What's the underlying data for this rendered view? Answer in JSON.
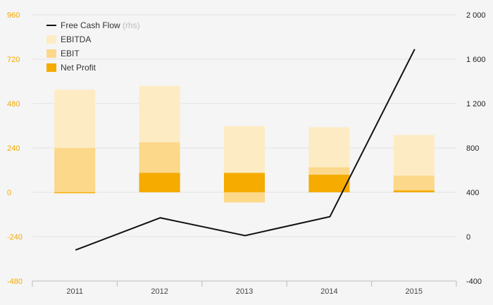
{
  "chart_data": {
    "type": "bar",
    "categories": [
      "2011",
      "2012",
      "2013",
      "2014",
      "2015"
    ],
    "series": [
      {
        "name": "EBITDA",
        "kind": "bar",
        "axis": "left",
        "values": [
          555,
          575,
          358,
          352,
          310
        ],
        "color": "#fdebc3"
      },
      {
        "name": "EBIT",
        "kind": "bar",
        "axis": "left",
        "values": [
          240,
          270,
          -55,
          135,
          90
        ],
        "color": "#fcd88a"
      },
      {
        "name": "Net Profit",
        "kind": "bar",
        "axis": "left",
        "values": [
          -5,
          105,
          105,
          95,
          10
        ],
        "color": "#f5ab00"
      },
      {
        "name": "Free Cash Flow",
        "note": "(rhs)",
        "kind": "line",
        "axis": "right",
        "values": [
          -120,
          170,
          10,
          180,
          1690
        ],
        "color": "#111111"
      }
    ],
    "y_left": {
      "ylim": [
        -480,
        960
      ],
      "ticks": [
        "-480",
        "-240",
        "0",
        "240",
        "480",
        "720",
        "960"
      ],
      "tick_values": [
        -480,
        -240,
        0,
        240,
        480,
        720,
        960
      ],
      "color": "#f2a900"
    },
    "y_right": {
      "ylim": [
        -400,
        2000
      ],
      "ticks": [
        "-400",
        "0",
        "400",
        "800",
        "1 200",
        "1 600",
        "2 000"
      ],
      "tick_values": [
        -400,
        0,
        400,
        800,
        1200,
        1600,
        2000
      ]
    },
    "grid": "horizontal",
    "legend": {
      "position": "top-left",
      "order": [
        "Free Cash Flow",
        "EBITDA",
        "EBIT",
        "Net Profit"
      ]
    }
  }
}
